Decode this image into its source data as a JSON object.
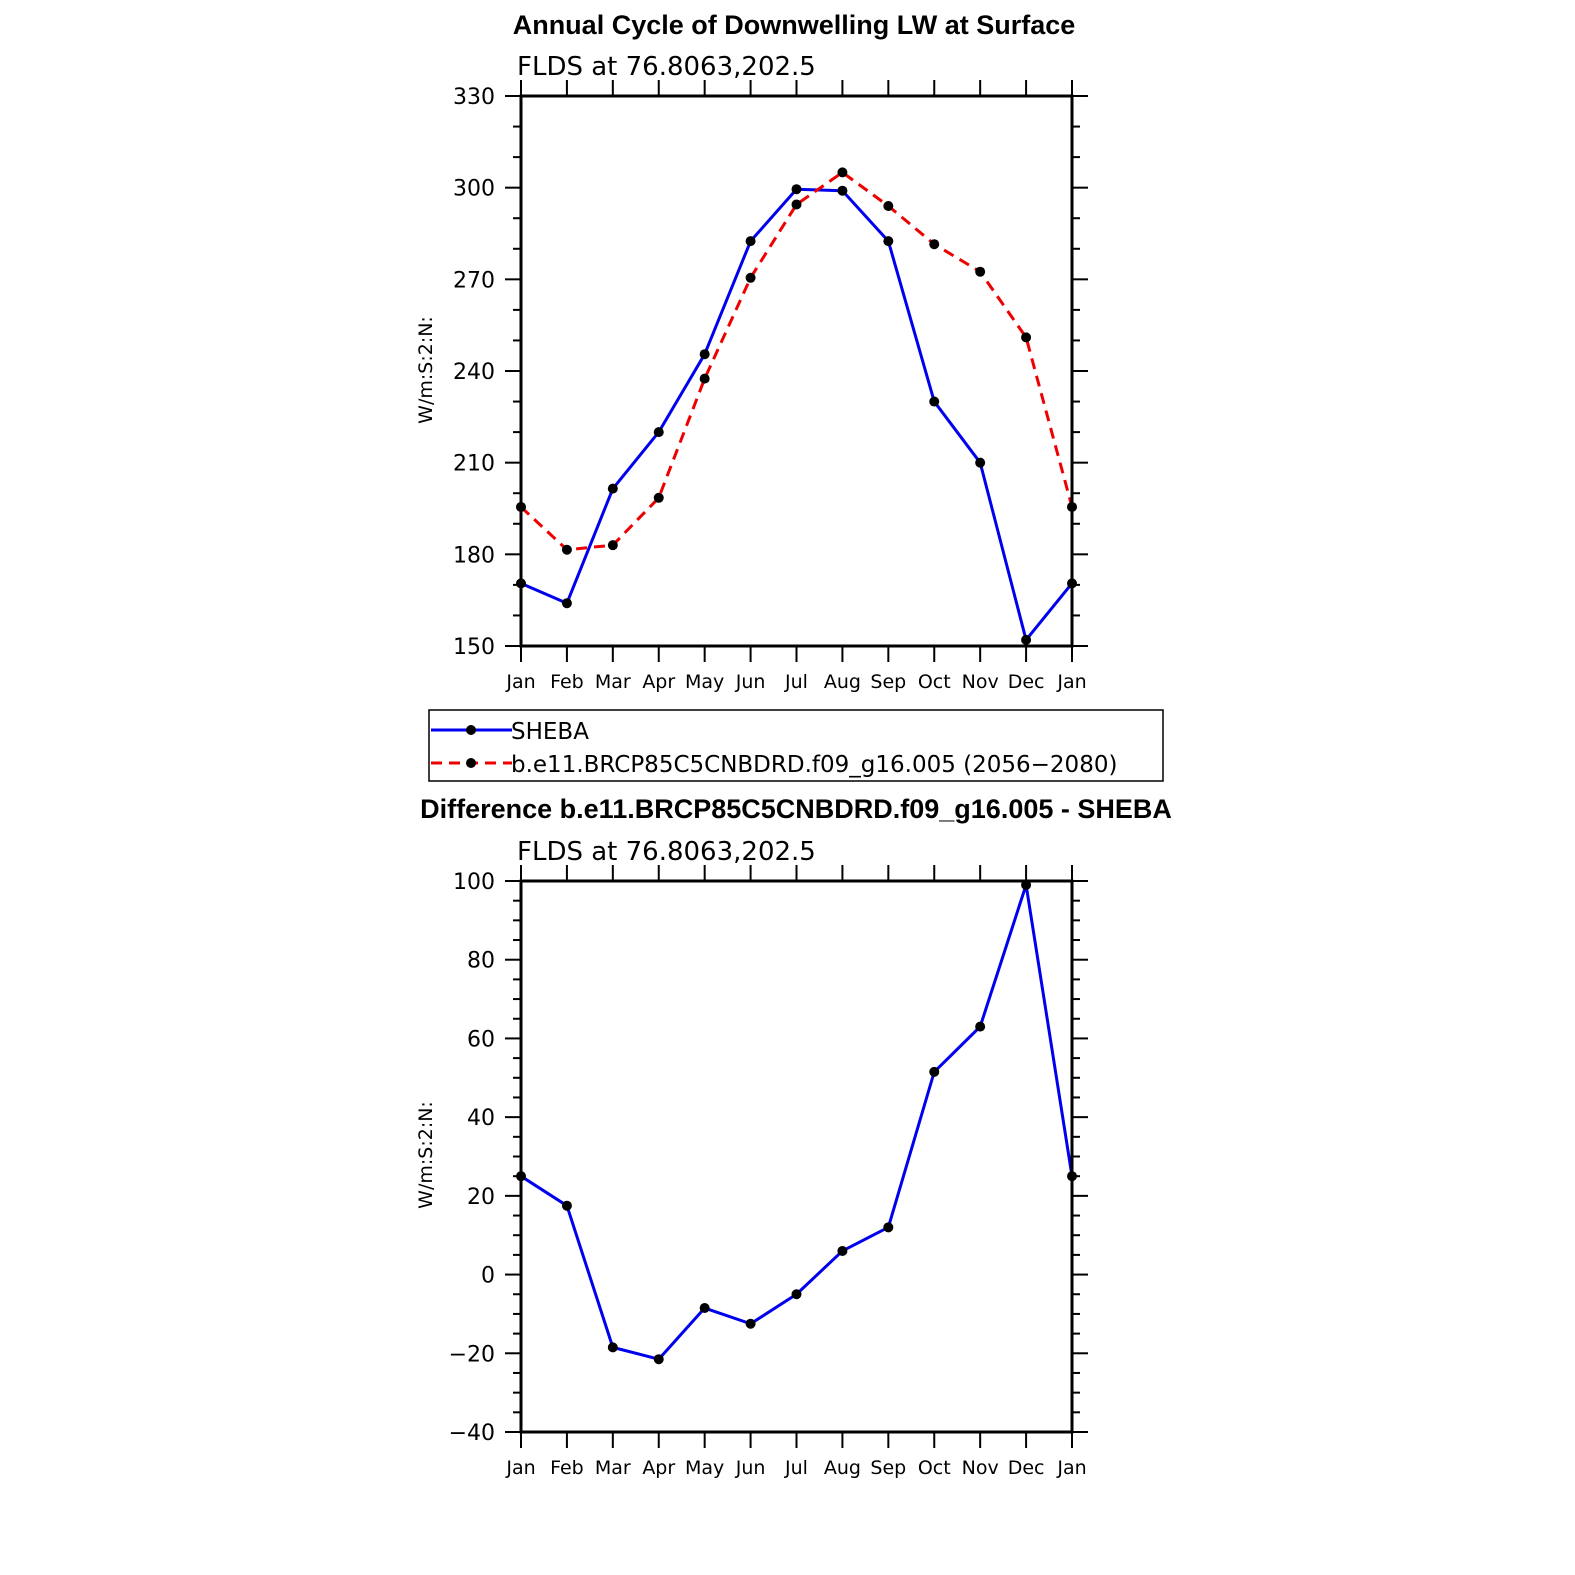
{
  "chart_data": [
    {
      "type": "line",
      "title": "Annual Cycle of Downwelling LW at Surface",
      "subtitle": "FLDS at 76.8063,202.5",
      "ylabel": "W/m:S:2:N:",
      "ylim": [
        150,
        330
      ],
      "yticks": [
        "150",
        "180",
        "210",
        "240",
        "270",
        "300",
        "330"
      ],
      "categories": [
        "Jan",
        "Feb",
        "Mar",
        "Apr",
        "May",
        "Jun",
        "Jul",
        "Aug",
        "Sep",
        "Oct",
        "Nov",
        "Dec",
        "Jan"
      ],
      "series": [
        {
          "name": "SHEBA",
          "color": "#0000ee",
          "dash": "solid",
          "values": [
            170.5,
            164,
            201.5,
            220,
            245.5,
            282.5,
            299.5,
            299,
            282.5,
            230,
            210,
            152,
            170.5
          ]
        },
        {
          "name": "b.e11.BRCP85C5CNBDRD.f09_g16.005 (2056−2080)",
          "color": "#ee0000",
          "dash": "dashed",
          "values": [
            195.5,
            181.5,
            183,
            198.5,
            237.5,
            270.5,
            294.5,
            305,
            294,
            281.5,
            272.5,
            251,
            195.5
          ]
        }
      ]
    },
    {
      "type": "line",
      "title": "Difference b.e11.BRCP85C5CNBDRD.f09_g16.005 - SHEBA",
      "subtitle": "FLDS at 76.8063,202.5",
      "ylabel": "W/m:S:2:N:",
      "ylim": [
        -40,
        100
      ],
      "yticks": [
        "−40",
        "−20",
        "0",
        "20",
        "40",
        "60",
        "80",
        "100"
      ],
      "categories": [
        "Jan",
        "Feb",
        "Mar",
        "Apr",
        "May",
        "Jun",
        "Jul",
        "Aug",
        "Sep",
        "Oct",
        "Nov",
        "Dec",
        "Jan"
      ],
      "series": [
        {
          "color": "#0000ee",
          "dash": "solid",
          "values": [
            25,
            17.5,
            -18.5,
            -21.5,
            -8.5,
            -12.5,
            -5,
            6,
            12,
            51.5,
            63,
            99,
            25
          ]
        }
      ]
    }
  ]
}
